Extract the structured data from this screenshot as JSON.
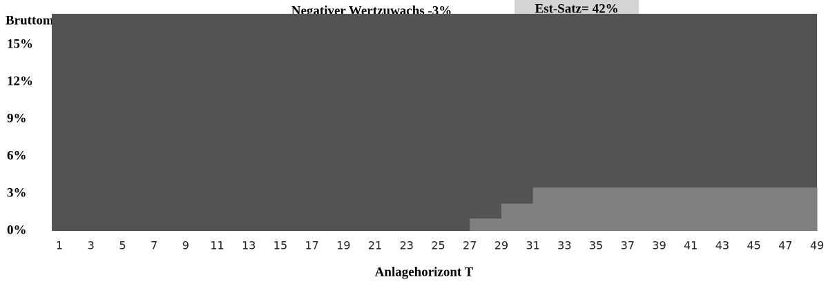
{
  "chart_data": {
    "type": "step-area",
    "title": "Negativer Wertzuwachs -3%",
    "annotation": "Est-Satz= 42%",
    "y_label": "Bruttomiete u",
    "x_label": "Anlagehorizont T",
    "categories": [
      1,
      null,
      3,
      null,
      5,
      null,
      7,
      null,
      9,
      null,
      11,
      null,
      13,
      null,
      15,
      null,
      17,
      null,
      19,
      null,
      21,
      null,
      23,
      null,
      25,
      null,
      27,
      null,
      29,
      null,
      31,
      null,
      33,
      null,
      35,
      null,
      37,
      null,
      39,
      null,
      41,
      null,
      43,
      null,
      45,
      null,
      47,
      null,
      49
    ],
    "values": [
      0,
      0,
      0,
      0,
      0,
      0,
      0,
      0,
      0,
      0,
      0,
      0,
      0,
      0,
      0,
      0,
      0,
      0,
      0,
      0,
      0,
      0,
      0,
      0,
      0,
      0,
      1,
      1,
      2.2,
      2.2,
      3.5,
      3.5,
      3.5,
      3.5,
      3.5,
      3.5,
      3.5,
      3.5,
      3.5,
      3.5,
      3.5,
      3.5,
      3.5,
      3.5,
      3.5,
      3.5,
      3.5,
      3.5,
      3.5
    ],
    "color": "#808080",
    "background_color": "#535353",
    "ylim": [
      0,
      17.5
    ],
    "yticks": [
      {
        "value": 0,
        "label": "0%"
      },
      {
        "value": 3,
        "label": "3%"
      },
      {
        "value": 6,
        "label": "6%"
      },
      {
        "value": 9,
        "label": "9%"
      },
      {
        "value": 12,
        "label": "12%"
      },
      {
        "value": 15,
        "label": "15%"
      }
    ],
    "grid": false
  }
}
